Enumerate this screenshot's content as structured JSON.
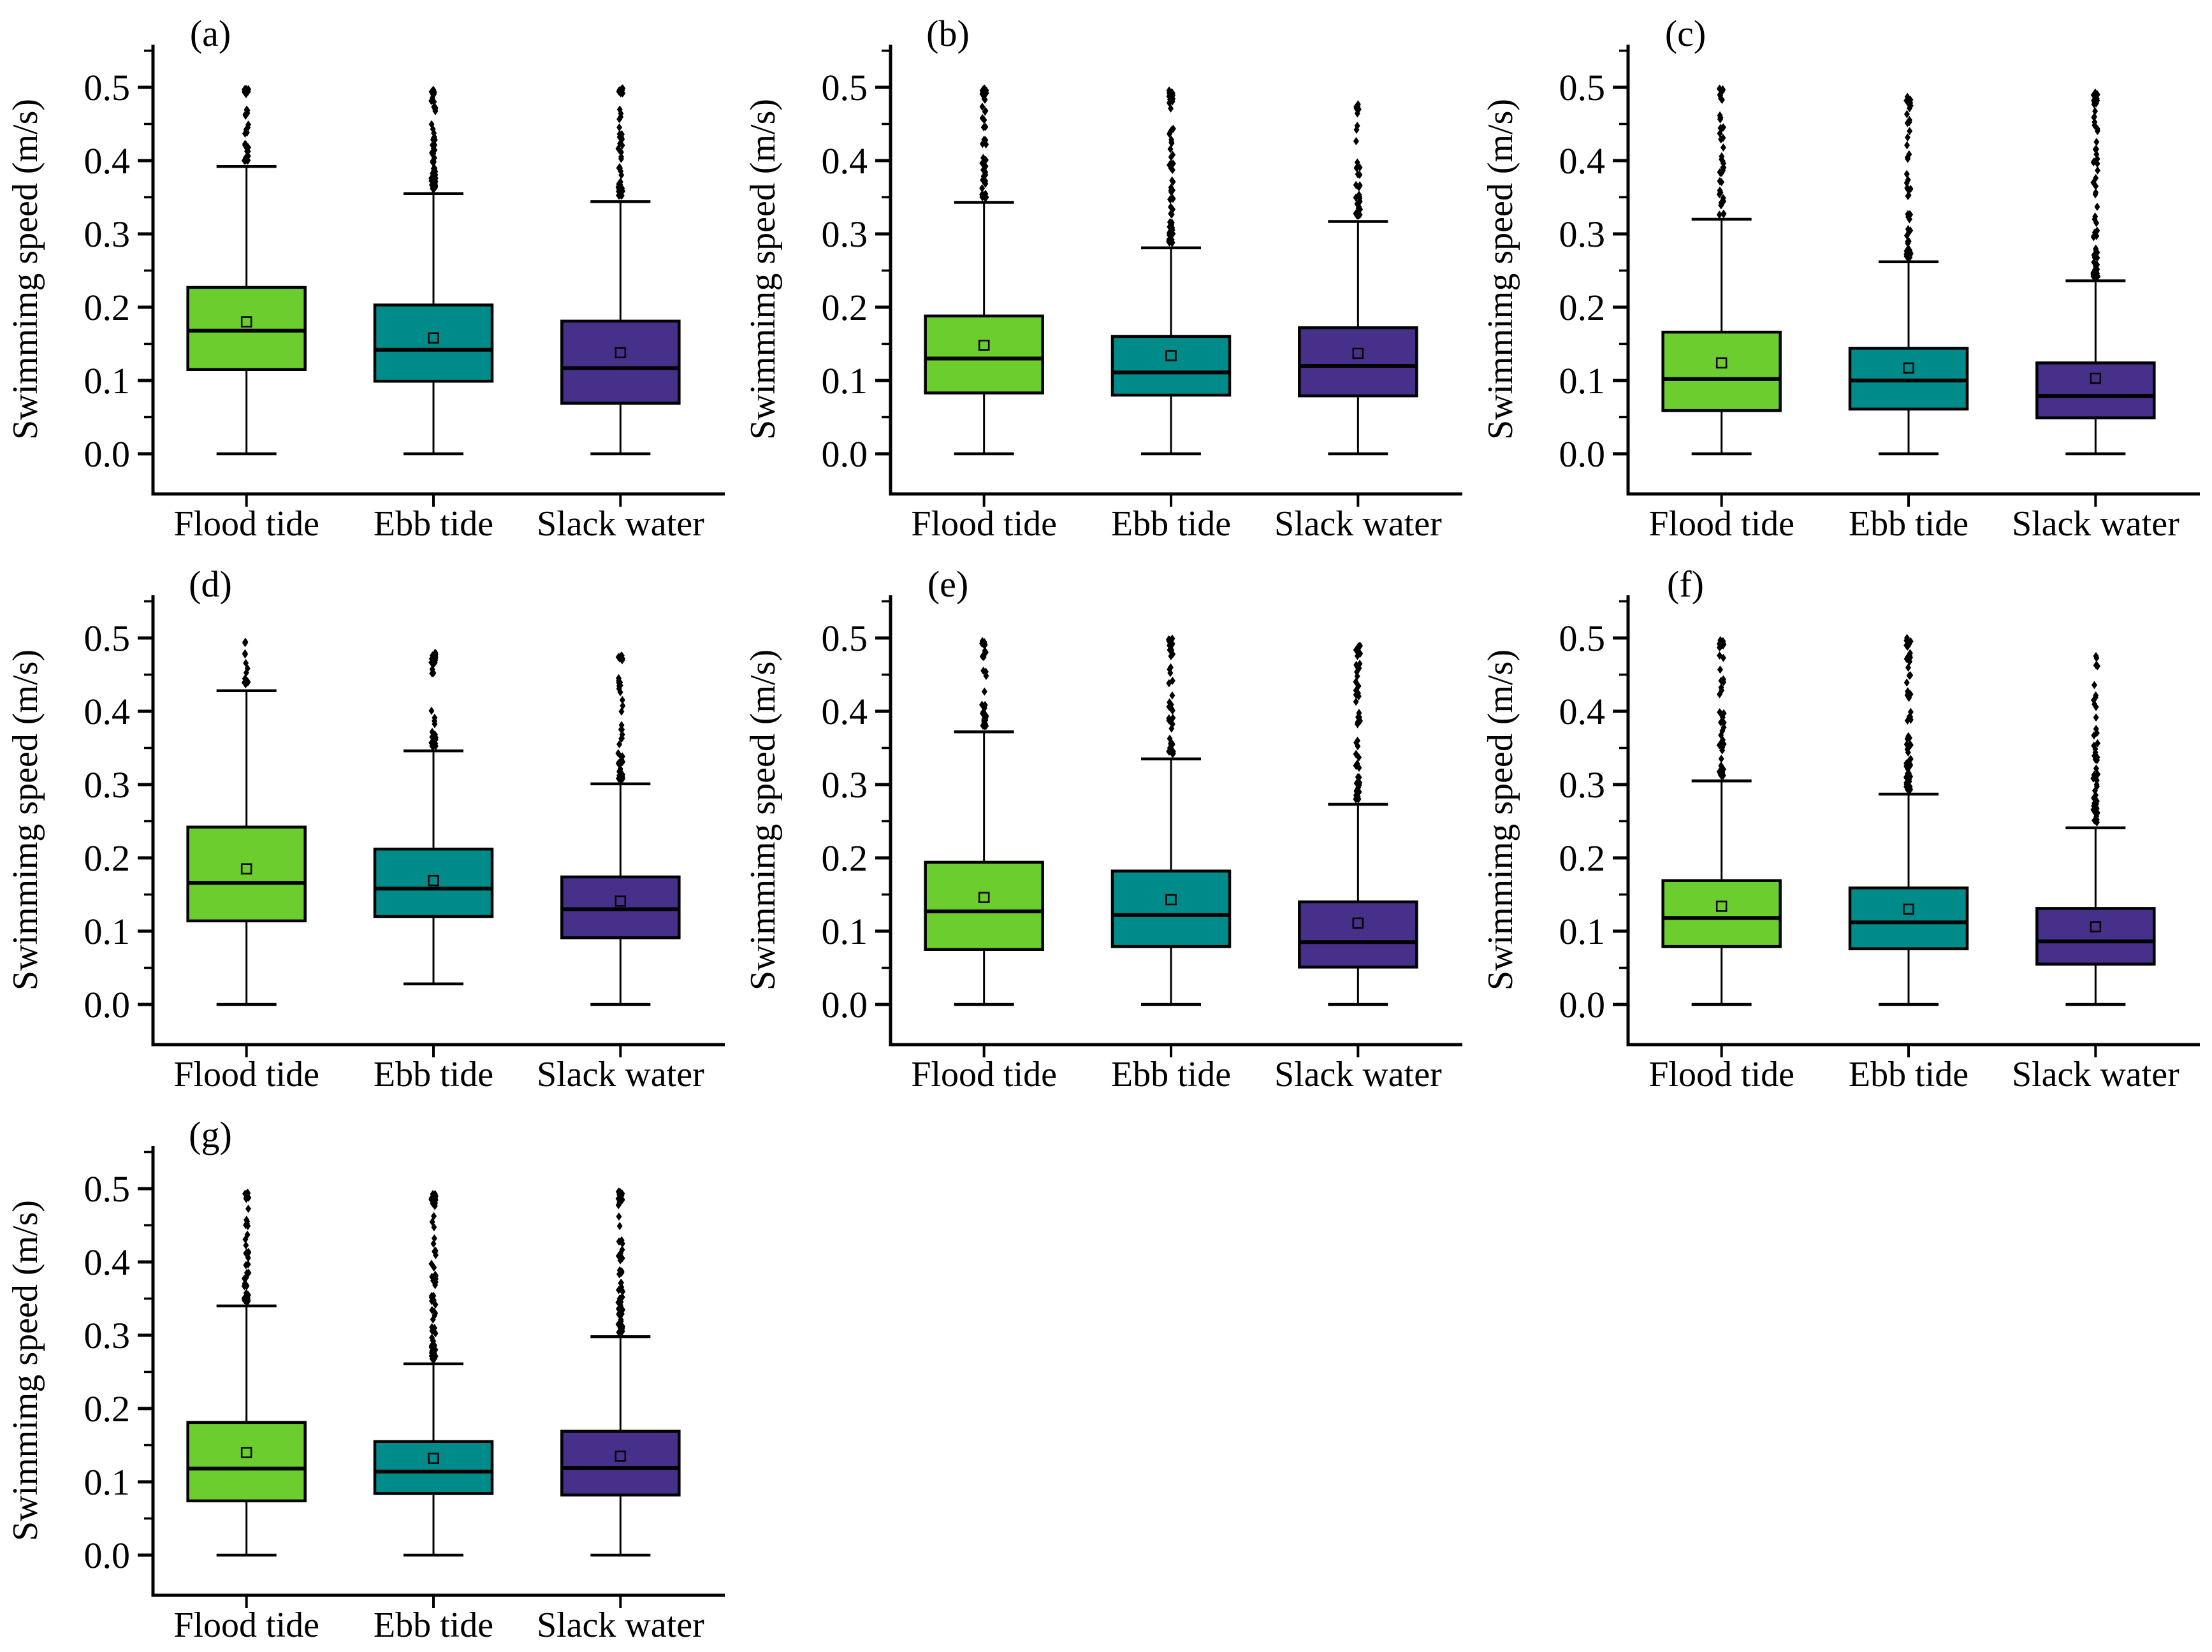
{
  "figure": {
    "ylabel": "Swimmimg speed (m/s)",
    "categories": [
      "Flood tide",
      "Ebb tide",
      "Slack water"
    ],
    "ytick_labels": [
      "0.0",
      "0.1",
      "0.2",
      "0.3",
      "0.4",
      "0.5"
    ],
    "colors": {
      "flood_tide": "#6CCD2F",
      "ebb_tide": "#008B8B",
      "slack_water": "#46308A",
      "edge": "#000000",
      "background": "#FFFFFF"
    }
  },
  "chart_data": [
    {
      "type": "box",
      "panel": "(a)",
      "ylabel": "Swimmimg speed (m/s)",
      "categories": [
        "Flood tide",
        "Ebb tide",
        "Slack water"
      ],
      "ylim": [
        -0.055,
        0.555
      ],
      "yticks": [
        0.0,
        0.1,
        0.2,
        0.3,
        0.4,
        0.5
      ],
      "grid": false,
      "series": [
        {
          "category": "Flood tide",
          "color": "#6CCD2F",
          "whisker_low": 0.0,
          "q1": 0.115,
          "median": 0.168,
          "q3": 0.227,
          "whisker_high": 0.392,
          "mean": 0.18,
          "outliers": {
            "min": 0.4,
            "max": 0.498,
            "count": 38
          }
        },
        {
          "category": "Ebb tide",
          "color": "#008B8B",
          "whisker_low": 0.0,
          "q1": 0.099,
          "median": 0.142,
          "q3": 0.203,
          "whisker_high": 0.355,
          "mean": 0.158,
          "outliers": {
            "min": 0.362,
            "max": 0.5,
            "count": 68
          }
        },
        {
          "category": "Slack water",
          "color": "#46308A",
          "whisker_low": 0.0,
          "q1": 0.069,
          "median": 0.117,
          "q3": 0.181,
          "whisker_high": 0.344,
          "mean": 0.138,
          "outliers": {
            "min": 0.352,
            "max": 0.5,
            "count": 52
          }
        }
      ]
    },
    {
      "type": "box",
      "panel": "(b)",
      "ylabel": "Swimmimg speed (m/s)",
      "categories": [
        "Flood tide",
        "Ebb tide",
        "Slack water"
      ],
      "ylim": [
        -0.055,
        0.555
      ],
      "yticks": [
        0.0,
        0.1,
        0.2,
        0.3,
        0.4,
        0.5
      ],
      "grid": false,
      "series": [
        {
          "category": "Flood tide",
          "color": "#6CCD2F",
          "whisker_low": 0.0,
          "q1": 0.083,
          "median": 0.13,
          "q3": 0.188,
          "whisker_high": 0.343,
          "mean": 0.148,
          "outliers": {
            "min": 0.35,
            "max": 0.5,
            "count": 52
          }
        },
        {
          "category": "Ebb tide",
          "color": "#008B8B",
          "whisker_low": 0.0,
          "q1": 0.08,
          "median": 0.111,
          "q3": 0.16,
          "whisker_high": 0.281,
          "mean": 0.134,
          "outliers": {
            "min": 0.288,
            "max": 0.497,
            "count": 78
          }
        },
        {
          "category": "Slack water",
          "color": "#46308A",
          "whisker_low": 0.0,
          "q1": 0.079,
          "median": 0.12,
          "q3": 0.172,
          "whisker_high": 0.317,
          "mean": 0.137,
          "outliers": {
            "min": 0.325,
            "max": 0.477,
            "count": 42
          }
        }
      ]
    },
    {
      "type": "box",
      "panel": "(c)",
      "ylabel": "Swimmimg speed (m/s)",
      "categories": [
        "Flood tide",
        "Ebb tide",
        "Slack water"
      ],
      "ylim": [
        -0.055,
        0.555
      ],
      "yticks": [
        0.0,
        0.1,
        0.2,
        0.3,
        0.4,
        0.5
      ],
      "grid": false,
      "series": [
        {
          "category": "Flood tide",
          "color": "#6CCD2F",
          "whisker_low": 0.0,
          "q1": 0.059,
          "median": 0.102,
          "q3": 0.166,
          "whisker_high": 0.32,
          "mean": 0.124,
          "outliers": {
            "min": 0.326,
            "max": 0.5,
            "count": 42
          }
        },
        {
          "category": "Ebb tide",
          "color": "#008B8B",
          "whisker_low": 0.0,
          "q1": 0.061,
          "median": 0.1,
          "q3": 0.144,
          "whisker_high": 0.262,
          "mean": 0.117,
          "outliers": {
            "min": 0.268,
            "max": 0.49,
            "count": 62
          }
        },
        {
          "category": "Slack water",
          "color": "#46308A",
          "whisker_low": 0.0,
          "q1": 0.049,
          "median": 0.079,
          "q3": 0.124,
          "whisker_high": 0.236,
          "mean": 0.103,
          "outliers": {
            "min": 0.242,
            "max": 0.493,
            "count": 72
          }
        }
      ]
    },
    {
      "type": "box",
      "panel": "(d)",
      "ylabel": "Swimmimg speed (m/s)",
      "categories": [
        "Flood tide",
        "Ebb tide",
        "Slack water"
      ],
      "ylim": [
        -0.055,
        0.555
      ],
      "yticks": [
        0.0,
        0.1,
        0.2,
        0.3,
        0.4,
        0.5
      ],
      "grid": false,
      "series": [
        {
          "category": "Flood tide",
          "color": "#6CCD2F",
          "whisker_low": 0.0,
          "q1": 0.114,
          "median": 0.166,
          "q3": 0.242,
          "whisker_high": 0.428,
          "mean": 0.185,
          "outliers": {
            "min": 0.437,
            "max": 0.495,
            "count": 13
          }
        },
        {
          "category": "Ebb tide",
          "color": "#008B8B",
          "whisker_low": 0.028,
          "q1": 0.12,
          "median": 0.158,
          "q3": 0.212,
          "whisker_high": 0.346,
          "mean": 0.169,
          "outliers": {
            "min": 0.352,
            "max": 0.48,
            "count": 38
          }
        },
        {
          "category": "Slack water",
          "color": "#46308A",
          "whisker_low": 0.0,
          "q1": 0.091,
          "median": 0.13,
          "q3": 0.174,
          "whisker_high": 0.301,
          "mean": 0.141,
          "outliers": {
            "min": 0.307,
            "max": 0.478,
            "count": 52
          }
        }
      ]
    },
    {
      "type": "box",
      "panel": "(e)",
      "ylabel": "Swimmimg speed (m/s)",
      "categories": [
        "Flood tide",
        "Ebb tide",
        "Slack water"
      ],
      "ylim": [
        -0.055,
        0.555
      ],
      "yticks": [
        0.0,
        0.1,
        0.2,
        0.3,
        0.4,
        0.5
      ],
      "grid": false,
      "series": [
        {
          "category": "Flood tide",
          "color": "#6CCD2F",
          "whisker_low": 0.0,
          "q1": 0.075,
          "median": 0.127,
          "q3": 0.194,
          "whisker_high": 0.372,
          "mean": 0.146,
          "outliers": {
            "min": 0.38,
            "max": 0.497,
            "count": 33
          }
        },
        {
          "category": "Ebb tide",
          "color": "#008B8B",
          "whisker_low": 0.0,
          "q1": 0.079,
          "median": 0.122,
          "q3": 0.182,
          "whisker_high": 0.335,
          "mean": 0.143,
          "outliers": {
            "min": 0.342,
            "max": 0.5,
            "count": 48
          }
        },
        {
          "category": "Slack water",
          "color": "#46308A",
          "whisker_low": 0.0,
          "q1": 0.051,
          "median": 0.085,
          "q3": 0.14,
          "whisker_high": 0.273,
          "mean": 0.111,
          "outliers": {
            "min": 0.28,
            "max": 0.49,
            "count": 62
          }
        }
      ]
    },
    {
      "type": "box",
      "panel": "(f)",
      "ylabel": "Swimmimg speed (m/s)",
      "categories": [
        "Flood tide",
        "Ebb tide",
        "Slack water"
      ],
      "ylim": [
        -0.055,
        0.555
      ],
      "yticks": [
        0.0,
        0.1,
        0.2,
        0.3,
        0.4,
        0.5
      ],
      "grid": false,
      "series": [
        {
          "category": "Flood tide",
          "color": "#6CCD2F",
          "whisker_low": 0.0,
          "q1": 0.079,
          "median": 0.118,
          "q3": 0.169,
          "whisker_high": 0.305,
          "mean": 0.134,
          "outliers": {
            "min": 0.312,
            "max": 0.5,
            "count": 48
          }
        },
        {
          "category": "Ebb tide",
          "color": "#008B8B",
          "whisker_low": 0.0,
          "q1": 0.076,
          "median": 0.112,
          "q3": 0.159,
          "whisker_high": 0.287,
          "mean": 0.13,
          "outliers": {
            "min": 0.293,
            "max": 0.5,
            "count": 68
          }
        },
        {
          "category": "Slack water",
          "color": "#46308A",
          "whisker_low": 0.0,
          "q1": 0.055,
          "median": 0.086,
          "q3": 0.131,
          "whisker_high": 0.241,
          "mean": 0.106,
          "outliers": {
            "min": 0.247,
            "max": 0.476,
            "count": 58
          }
        }
      ]
    },
    {
      "type": "box",
      "panel": "(g)",
      "ylabel": "Swimmimg speed (m/s)",
      "categories": [
        "Flood tide",
        "Ebb tide",
        "Slack water"
      ],
      "ylim": [
        -0.055,
        0.555
      ],
      "yticks": [
        0.0,
        0.1,
        0.2,
        0.3,
        0.4,
        0.5
      ],
      "grid": false,
      "series": [
        {
          "category": "Flood tide",
          "color": "#6CCD2F",
          "whisker_low": 0.0,
          "q1": 0.074,
          "median": 0.118,
          "q3": 0.181,
          "whisker_high": 0.34,
          "mean": 0.14,
          "outliers": {
            "min": 0.346,
            "max": 0.495,
            "count": 52
          }
        },
        {
          "category": "Ebb tide",
          "color": "#008B8B",
          "whisker_low": 0.0,
          "q1": 0.084,
          "median": 0.114,
          "q3": 0.155,
          "whisker_high": 0.261,
          "mean": 0.132,
          "outliers": {
            "min": 0.267,
            "max": 0.495,
            "count": 82
          }
        },
        {
          "category": "Slack water",
          "color": "#46308A",
          "whisker_low": 0.0,
          "q1": 0.082,
          "median": 0.119,
          "q3": 0.169,
          "whisker_high": 0.298,
          "mean": 0.135,
          "outliers": {
            "min": 0.304,
            "max": 0.497,
            "count": 66
          }
        }
      ]
    }
  ]
}
